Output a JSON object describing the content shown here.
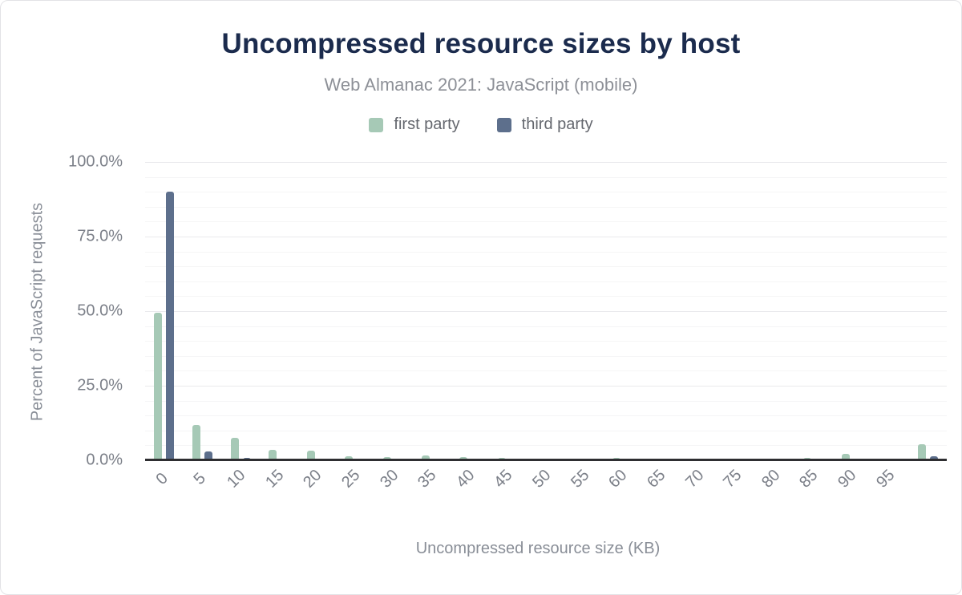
{
  "figure": {
    "title": "Uncompressed resource sizes by host",
    "subtitle": "Web Almanac 2021: JavaScript (mobile)"
  },
  "colors": {
    "title_text": "#1b2b4d",
    "subtitle_text": "#8d9097",
    "axis_text": "#7b7f88",
    "first_party": "#a6c9b6",
    "third_party": "#5d6f8c",
    "axis_line": "#2e2e31",
    "gridline_minor": "#f5f5f6",
    "gridline_major": "#e9e9ec"
  },
  "chart_data": {
    "type": "bar",
    "title": "Uncompressed resource sizes by host",
    "subtitle": "Web Almanac 2021: JavaScript (mobile)",
    "xlabel": "Uncompressed resource size (KB)",
    "ylabel": "Percent of JavaScript requests",
    "ylim": [
      0,
      100
    ],
    "yticks": [
      {
        "value": 100,
        "label": "100.0%"
      },
      {
        "value": 75,
        "label": "75.0%"
      },
      {
        "value": 50,
        "label": "50.0%"
      },
      {
        "value": 25,
        "label": "25.0%"
      },
      {
        "value": 0,
        "label": "0.0%"
      }
    ],
    "grid": {
      "on": true,
      "minor_step": 5,
      "major_step": 25
    },
    "legend_position": "top",
    "categories": [
      "0",
      "5",
      "10",
      "15",
      "20",
      "25",
      "30",
      "35",
      "40",
      "45",
      "50",
      "55",
      "60",
      "65",
      "70",
      "75",
      "80",
      "85",
      "90",
      "95",
      ""
    ],
    "series": [
      {
        "name": "first party",
        "color": "#a6c9b6",
        "values": [
          49.4,
          11.7,
          7.6,
          3.6,
          3.3,
          1.4,
          1.1,
          1.6,
          1.0,
          0.7,
          0.6,
          0.6,
          0.7,
          0.6,
          0.2,
          0.2,
          0.5,
          0.9,
          2.2,
          0.6,
          5.4
        ]
      },
      {
        "name": "third party",
        "color": "#5d6f8c",
        "values": [
          90.0,
          2.9,
          0.7,
          0.5,
          0.6,
          0.3,
          0.3,
          0.2,
          0.2,
          0.2,
          0.15,
          0.15,
          0.15,
          0.1,
          0.1,
          0.1,
          0.1,
          0.1,
          0.2,
          0.1,
          1.3
        ]
      }
    ]
  }
}
